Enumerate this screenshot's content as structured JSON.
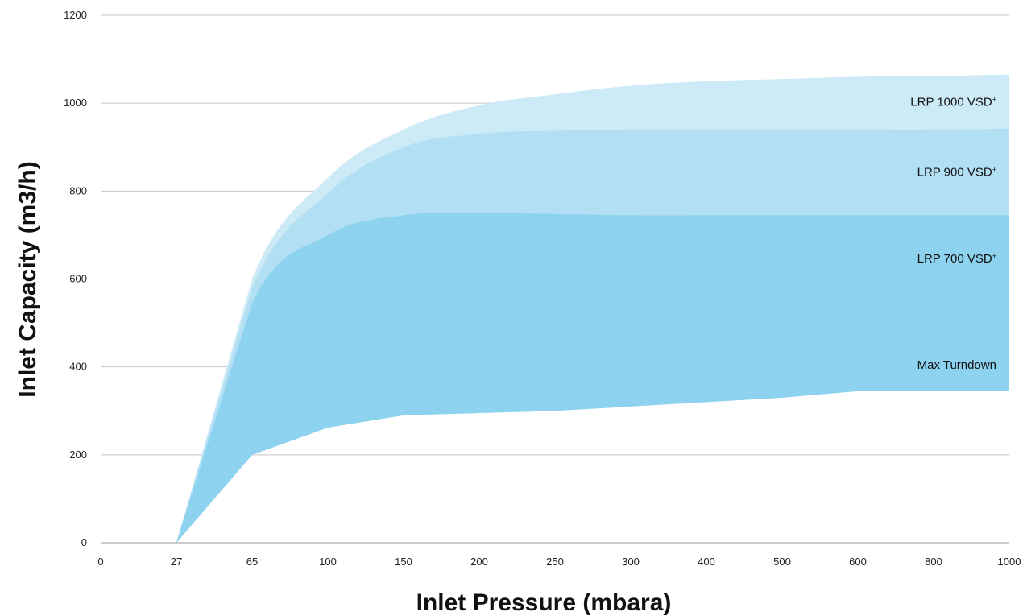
{
  "chart_data": {
    "type": "area",
    "xlabel": "Inlet Pressure (mbara)",
    "ylabel": "Inlet Capacity (m3/h)",
    "x_axis_scale": "categorical (equally spaced ticks)",
    "categories": [
      "0",
      "27",
      "65",
      "100",
      "150",
      "200",
      "250",
      "300",
      "400",
      "500",
      "600",
      "800",
      "1000"
    ],
    "ylim": [
      0,
      1200
    ],
    "yticks": [
      0,
      200,
      400,
      600,
      800,
      1000,
      1200
    ],
    "grid": "horizontal",
    "series": [
      {
        "name": "LRP 1000 VSD",
        "label_suffix": "+",
        "color": "#cdeaf7",
        "values": [
          null,
          0,
          600,
          830,
          940,
          995,
          1020,
          1040,
          1050,
          1055,
          1060,
          1062,
          1065
        ]
      },
      {
        "name": "LRP 900 VSD",
        "label_suffix": "+",
        "color": "#b2dff3",
        "values": [
          null,
          0,
          580,
          795,
          900,
          930,
          937,
          940,
          940,
          940,
          940,
          940,
          942
        ]
      },
      {
        "name": "LRP 700 VSD",
        "label_suffix": "+",
        "color": "#8dd3f0",
        "values": [
          null,
          0,
          545,
          700,
          745,
          750,
          748,
          745,
          745,
          745,
          745,
          745,
          745
        ]
      },
      {
        "name": "Max Turndown",
        "label_suffix": "",
        "color": "#8dd3f0",
        "values": [
          null,
          0,
          200,
          262,
          290,
          295,
          300,
          310,
          320,
          330,
          345,
          345,
          345
        ]
      }
    ]
  }
}
